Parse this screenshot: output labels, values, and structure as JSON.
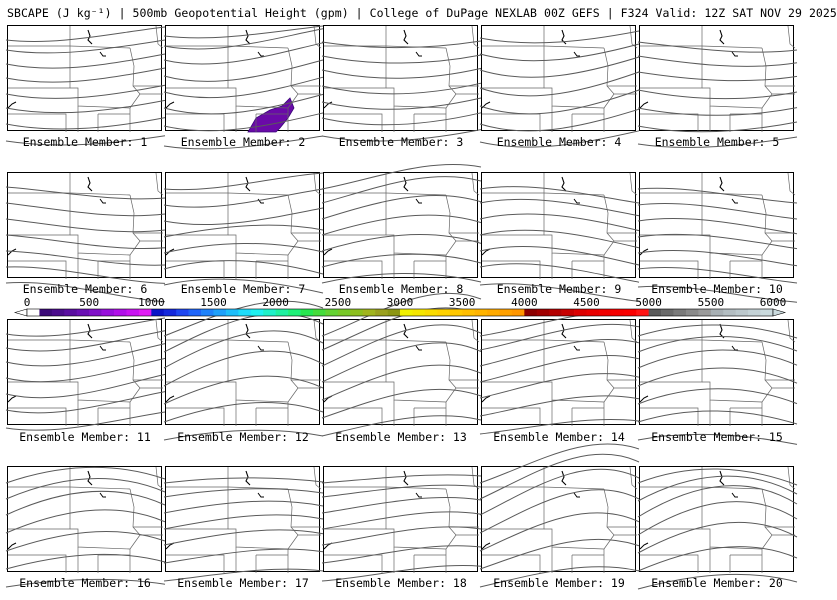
{
  "title": "SBCAPE (J kg⁻¹) | 500mb Geopotential Height (gpm) | College of DuPage NEXLAB 00Z GEFS | F324 Valid: 12Z SAT NOV 29 2025",
  "panels": [
    {
      "label": "Ensemble Member: 1",
      "cape": false
    },
    {
      "label": "Ensemble Member: 2",
      "cape": true
    },
    {
      "label": "Ensemble Member: 3",
      "cape": false
    },
    {
      "label": "Ensemble Member: 4",
      "cape": false
    },
    {
      "label": "Ensemble Member: 5",
      "cape": false
    },
    {
      "label": "Ensemble Member: 6",
      "cape": false
    },
    {
      "label": "Ensemble Member: 7",
      "cape": false
    },
    {
      "label": "Ensemble Member: 8",
      "cape": false
    },
    {
      "label": "Ensemble Member: 9",
      "cape": false
    },
    {
      "label": "Ensemble Member: 10",
      "cape": false
    },
    {
      "label": "Ensemble Member: 11",
      "cape": false
    },
    {
      "label": "Ensemble Member: 12",
      "cape": false
    },
    {
      "label": "Ensemble Member: 13",
      "cape": false
    },
    {
      "label": "Ensemble Member: 14",
      "cape": false
    },
    {
      "label": "Ensemble Member: 15",
      "cape": false
    },
    {
      "label": "Ensemble Member: 16",
      "cape": false
    },
    {
      "label": "Ensemble Member: 17",
      "cape": false
    },
    {
      "label": "Ensemble Member: 18",
      "cape": false
    },
    {
      "label": "Ensemble Member: 19",
      "cape": false
    },
    {
      "label": "Ensemble Member: 20",
      "cape": false
    }
  ],
  "colorbar": {
    "ticks": [
      "0",
      "500",
      "1000",
      "1500",
      "2000",
      "2500",
      "3000",
      "3500",
      "4000",
      "4500",
      "5000",
      "5500",
      "6000"
    ],
    "colors": [
      "#ffffff",
      "#3c0a78",
      "#4b0c8c",
      "#5a0ea0",
      "#6a10b4",
      "#8010c8",
      "#9810dc",
      "#b010e8",
      "#c814f0",
      "#e01cf4",
      "#0a14c8",
      "#1428dc",
      "#1e46f0",
      "#1e64f8",
      "#1e82fa",
      "#1ea0fa",
      "#1ebefa",
      "#1edcfa",
      "#1ef0f0",
      "#1ef0c8",
      "#1ef0a0",
      "#1ef078",
      "#28e650",
      "#46dc3c",
      "#64d232",
      "#78c828",
      "#8cbe1e",
      "#a0b41e",
      "#9aa01e",
      "#8c9614",
      "#f0f000",
      "#f5e600",
      "#fadc00",
      "#ffd200",
      "#ffc800",
      "#ffbe00",
      "#ffb400",
      "#ffaa00",
      "#ffa000",
      "#ff9600",
      "#8c0000",
      "#a00000",
      "#b40000",
      "#c80000",
      "#dc0000",
      "#e80000",
      "#f00000",
      "#f50000",
      "#fa0000",
      "#ff1414",
      "#5a5a5a",
      "#6a6a6a",
      "#7a7a7a",
      "#8a8a8a",
      "#9a9a9a",
      "#a8b0b4",
      "#b4bec2",
      "#bcc8cc",
      "#c4d2d6",
      "#cadadd"
    ]
  },
  "colors": {
    "contour": "#5a5a5a",
    "border": "#666666",
    "cape_fill": "#6a0aa8",
    "cape_edge": "#3a0878"
  }
}
